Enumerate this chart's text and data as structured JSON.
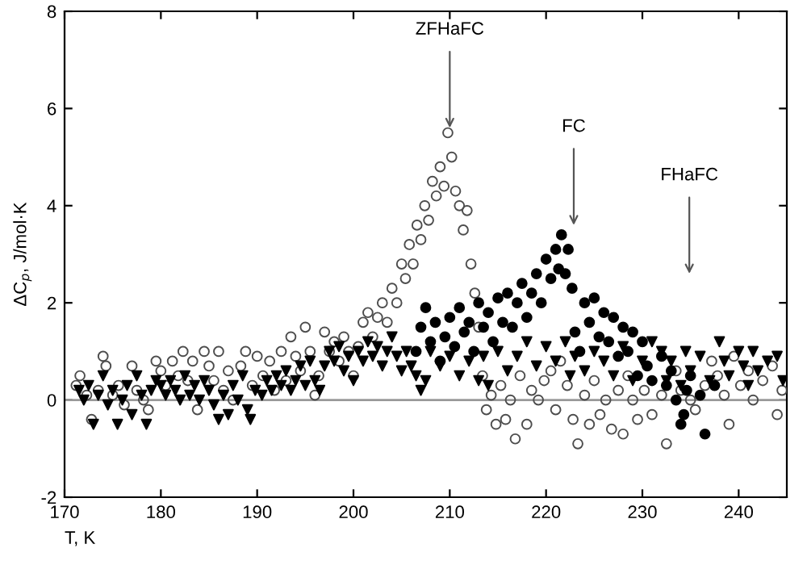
{
  "chart_data": {
    "type": "scatter",
    "xlabel": "T, K",
    "ylabel": "ΔC$_{p}$, J/mol·K",
    "xlim": [
      170,
      245
    ],
    "xticks": [
      170,
      180,
      190,
      200,
      210,
      220,
      230,
      240
    ],
    "ylim": [
      -2,
      8
    ],
    "yticks": [
      -2,
      0,
      2,
      4,
      6,
      8
    ],
    "grid": false,
    "legend": false,
    "ref_lines": [
      {
        "axis": "y",
        "value": 0,
        "color": "#999999",
        "line_style": "solid"
      }
    ],
    "annotations": [
      {
        "text": "ZFHaFC",
        "x": 210,
        "y": 5.6
      },
      "FC",
      "FHaFC"
    ],
    "series": [
      {
        "color": "#4d4d4d",
        "marker": "circle",
        "x": [
          171.2,
          171.6,
          172.3,
          172.8,
          173.5,
          174.0,
          174.3,
          175.0,
          175.6,
          176.2,
          177.0,
          177.5,
          178.2,
          178.7,
          179.5,
          180.0,
          180.5,
          181.2,
          181.8,
          182.3,
          182.8,
          183.3,
          183.8,
          184.5,
          185.0,
          185.5,
          186.0,
          186.5,
          187.0,
          187.5,
          188.3,
          188.8,
          189.5,
          190.0,
          190.6,
          191.3,
          191.8,
          192.5,
          193.0,
          193.5,
          194.0,
          194.5,
          195.0,
          195.5,
          196.0,
          196.4,
          197.0,
          197.5,
          198.0,
          198.5,
          199.0,
          199.5,
          200.0,
          200.5,
          201.0,
          201.5,
          202.0,
          202.5,
          203.0,
          203.5,
          204.0,
          204.5,
          205.0,
          205.4,
          205.8,
          206.2,
          206.6,
          207.0,
          207.4,
          207.8,
          208.2,
          208.6,
          209.0,
          209.4,
          209.8,
          210.2,
          210.6,
          211.0,
          211.4,
          211.8,
          212.2,
          212.6,
          213.0,
          213.4,
          213.8,
          214.3,
          214.8,
          215.3,
          215.8,
          216.3,
          216.8,
          217.3,
          218.0,
          218.5,
          219.2,
          219.8,
          220.5,
          221.0,
          221.5,
          222.2,
          222.8,
          223.3,
          224.0,
          224.5,
          225.0,
          225.6,
          226.2,
          226.8,
          227.5,
          228.0,
          228.5,
          229.0,
          229.5,
          230.2,
          231.0,
          232.0,
          232.5,
          233.5,
          234.0,
          235.0,
          235.5,
          236.5,
          237.2,
          237.8,
          238.5,
          239.0,
          239.5,
          240.2,
          241.0,
          241.5,
          242.5,
          243.5,
          244.0,
          244.5
        ],
        "values": [
          0.3,
          0.5,
          0.1,
          -0.4,
          0.2,
          0.9,
          0.7,
          0.1,
          0.3,
          -0.1,
          0.7,
          0.2,
          0.0,
          -0.2,
          0.8,
          0.6,
          0.3,
          0.8,
          0.5,
          1.0,
          0.4,
          0.8,
          -0.2,
          1.0,
          0.7,
          0.4,
          1.0,
          0.2,
          0.6,
          0.0,
          0.7,
          1.0,
          0.3,
          0.9,
          0.5,
          0.8,
          0.2,
          1.0,
          0.4,
          1.3,
          0.9,
          0.6,
          1.5,
          1.0,
          0.1,
          0.5,
          1.4,
          1.0,
          1.2,
          0.8,
          1.3,
          1.0,
          0.5,
          1.1,
          1.6,
          1.8,
          1.3,
          1.7,
          2.0,
          1.6,
          2.3,
          2.0,
          2.8,
          2.5,
          3.2,
          2.8,
          3.6,
          3.3,
          4.0,
          3.7,
          4.5,
          4.2,
          4.8,
          4.4,
          5.5,
          5.0,
          4.3,
          4.0,
          3.5,
          3.9,
          2.8,
          2.2,
          1.5,
          0.5,
          -0.2,
          0.1,
          -0.5,
          0.3,
          -0.4,
          0.0,
          -0.8,
          0.5,
          -0.5,
          0.2,
          0.0,
          0.4,
          0.6,
          -0.2,
          0.8,
          0.3,
          -0.4,
          -0.9,
          0.1,
          -0.5,
          0.4,
          -0.3,
          0.0,
          -0.6,
          0.2,
          -0.7,
          0.5,
          0.0,
          -0.4,
          0.2,
          -0.3,
          0.1,
          -0.9,
          0.6,
          0.2,
          0.0,
          -0.2,
          0.3,
          0.8,
          0.5,
          0.1,
          -0.5,
          0.9,
          0.3,
          0.6,
          0.0,
          0.4,
          0.7,
          -0.3,
          0.2
        ]
      },
      {
        "color": "#000000",
        "marker": "circle",
        "x": [
          206.5,
          207.0,
          207.5,
          208.0,
          208.5,
          209.0,
          209.5,
          210.0,
          210.5,
          211.0,
          211.5,
          212.0,
          212.5,
          213.0,
          213.5,
          214.0,
          214.5,
          215.0,
          215.5,
          216.0,
          216.5,
          217.0,
          217.5,
          218.0,
          218.5,
          219.0,
          219.5,
          220.0,
          220.5,
          221.0,
          221.3,
          221.6,
          222.0,
          222.3,
          222.7,
          223.0,
          223.5,
          224.0,
          224.5,
          225.0,
          225.5,
          226.0,
          226.5,
          227.0,
          227.5,
          228.0,
          228.5,
          229.0,
          229.5,
          230.0,
          230.5,
          231.0,
          232.0,
          232.5,
          233.0,
          233.5,
          234.0,
          234.3,
          234.6,
          235.0,
          236.0,
          236.5,
          237.5
        ],
        "values": [
          1.0,
          1.5,
          1.9,
          1.2,
          1.6,
          0.8,
          1.3,
          1.7,
          1.1,
          1.9,
          1.4,
          1.6,
          1.0,
          2.0,
          1.5,
          1.8,
          1.2,
          2.1,
          1.6,
          2.2,
          1.5,
          2.0,
          2.4,
          1.7,
          2.2,
          2.6,
          2.0,
          2.9,
          2.5,
          3.1,
          2.7,
          3.4,
          2.6,
          3.1,
          2.3,
          1.4,
          1.0,
          2.0,
          1.6,
          2.1,
          1.3,
          1.8,
          1.2,
          1.7,
          0.9,
          1.5,
          1.0,
          1.4,
          0.5,
          1.2,
          0.7,
          0.4,
          0.9,
          0.3,
          0.6,
          0.0,
          -0.5,
          -0.3,
          0.2,
          0.5,
          0.1,
          -0.7,
          0.3
        ]
      },
      {
        "color": "#000000",
        "marker": "triangle",
        "x": [
          171.5,
          172.0,
          172.5,
          173.0,
          173.5,
          174.0,
          174.5,
          175.0,
          175.5,
          176.0,
          176.5,
          177.0,
          177.5,
          178.0,
          178.5,
          179.0,
          179.5,
          180.0,
          180.5,
          181.0,
          181.5,
          182.0,
          182.5,
          183.0,
          183.5,
          184.0,
          184.5,
          185.0,
          185.5,
          186.0,
          186.5,
          187.0,
          187.5,
          188.0,
          188.5,
          189.0,
          189.3,
          189.8,
          190.5,
          191.0,
          191.5,
          192.0,
          192.5,
          193.0,
          193.5,
          194.0,
          194.5,
          195.0,
          195.5,
          196.0,
          196.5,
          197.0,
          197.5,
          198.0,
          198.5,
          199.0,
          199.5,
          200.0,
          200.5,
          201.0,
          201.5,
          202.0,
          202.5,
          203.0,
          203.5,
          204.0,
          204.5,
          205.0,
          205.5,
          206.0,
          206.5,
          207.0,
          207.5,
          208.0,
          209.0,
          210.0,
          211.0,
          212.0,
          213.0,
          213.5,
          214.0,
          215.0,
          216.0,
          217.0,
          218.0,
          219.0,
          220.0,
          221.0,
          222.0,
          222.5,
          223.0,
          224.0,
          225.0,
          226.0,
          227.0,
          228.0,
          229.0,
          230.0,
          231.0,
          232.0,
          232.5,
          233.0,
          234.0,
          234.5,
          235.0,
          236.0,
          237.0,
          238.0,
          238.5,
          239.0,
          240.0,
          240.5,
          241.0,
          241.5,
          242.0,
          243.0,
          244.0,
          244.6
        ],
        "values": [
          0.2,
          0.0,
          0.3,
          -0.5,
          0.1,
          0.5,
          -0.1,
          0.2,
          -0.5,
          0.0,
          0.3,
          -0.3,
          0.5,
          0.1,
          -0.5,
          0.2,
          0.4,
          0.3,
          0.1,
          0.4,
          0.2,
          0.0,
          0.5,
          0.1,
          0.3,
          0.0,
          0.4,
          0.2,
          -0.1,
          -0.4,
          0.1,
          -0.3,
          0.3,
          0.0,
          0.5,
          -0.2,
          -0.4,
          0.2,
          0.1,
          0.4,
          0.2,
          0.5,
          0.3,
          0.6,
          0.2,
          0.4,
          0.7,
          0.3,
          0.8,
          0.4,
          0.2,
          0.7,
          1.0,
          0.8,
          1.1,
          0.6,
          0.9,
          0.4,
          1.0,
          0.8,
          1.2,
          0.9,
          1.1,
          0.7,
          1.0,
          1.3,
          0.9,
          0.6,
          1.0,
          0.7,
          0.5,
          0.2,
          0.4,
          1.0,
          0.7,
          0.9,
          0.5,
          0.8,
          0.4,
          0.9,
          0.3,
          1.0,
          0.6,
          0.9,
          1.2,
          0.7,
          1.1,
          0.8,
          1.2,
          0.5,
          0.9,
          0.6,
          1.0,
          0.8,
          0.5,
          1.1,
          0.4,
          0.8,
          1.2,
          1.0,
          0.4,
          0.8,
          0.3,
          1.0,
          0.6,
          0.9,
          0.4,
          1.2,
          0.8,
          0.5,
          1.0,
          0.7,
          0.3,
          1.0,
          0.6,
          0.8,
          0.9,
          0.4
        ]
      }
    ]
  }
}
